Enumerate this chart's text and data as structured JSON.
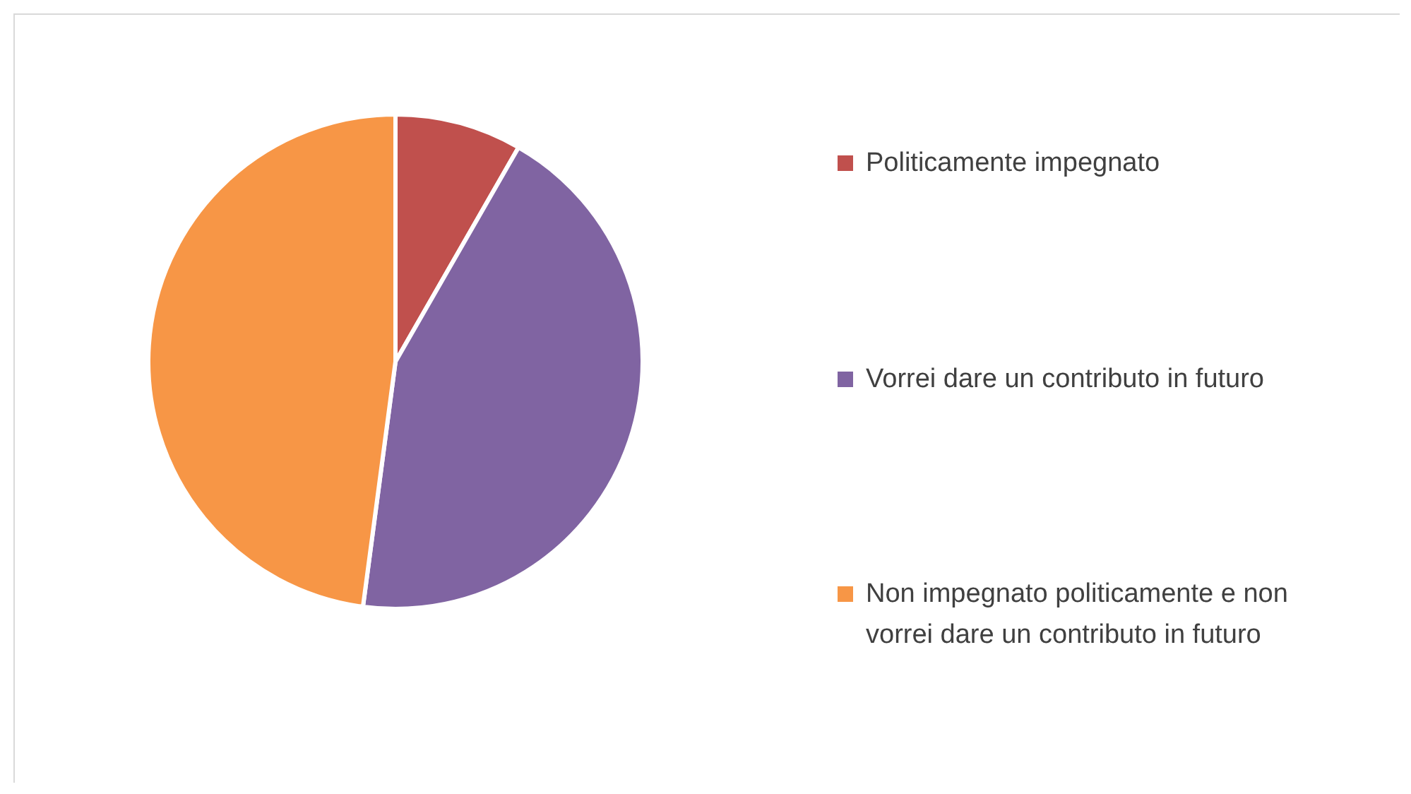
{
  "chart_data": {
    "type": "pie",
    "categories": [
      "Politicamente impegnato",
      "Vorrei dare un contributo in futuro",
      "Non impegnato politicamente e non vorrei dare un contributo in futuro"
    ],
    "values": [
      8.3,
      43.8,
      47.9
    ],
    "colors": [
      "#c0504d",
      "#8064a2",
      "#f79646"
    ],
    "legend": "right"
  }
}
